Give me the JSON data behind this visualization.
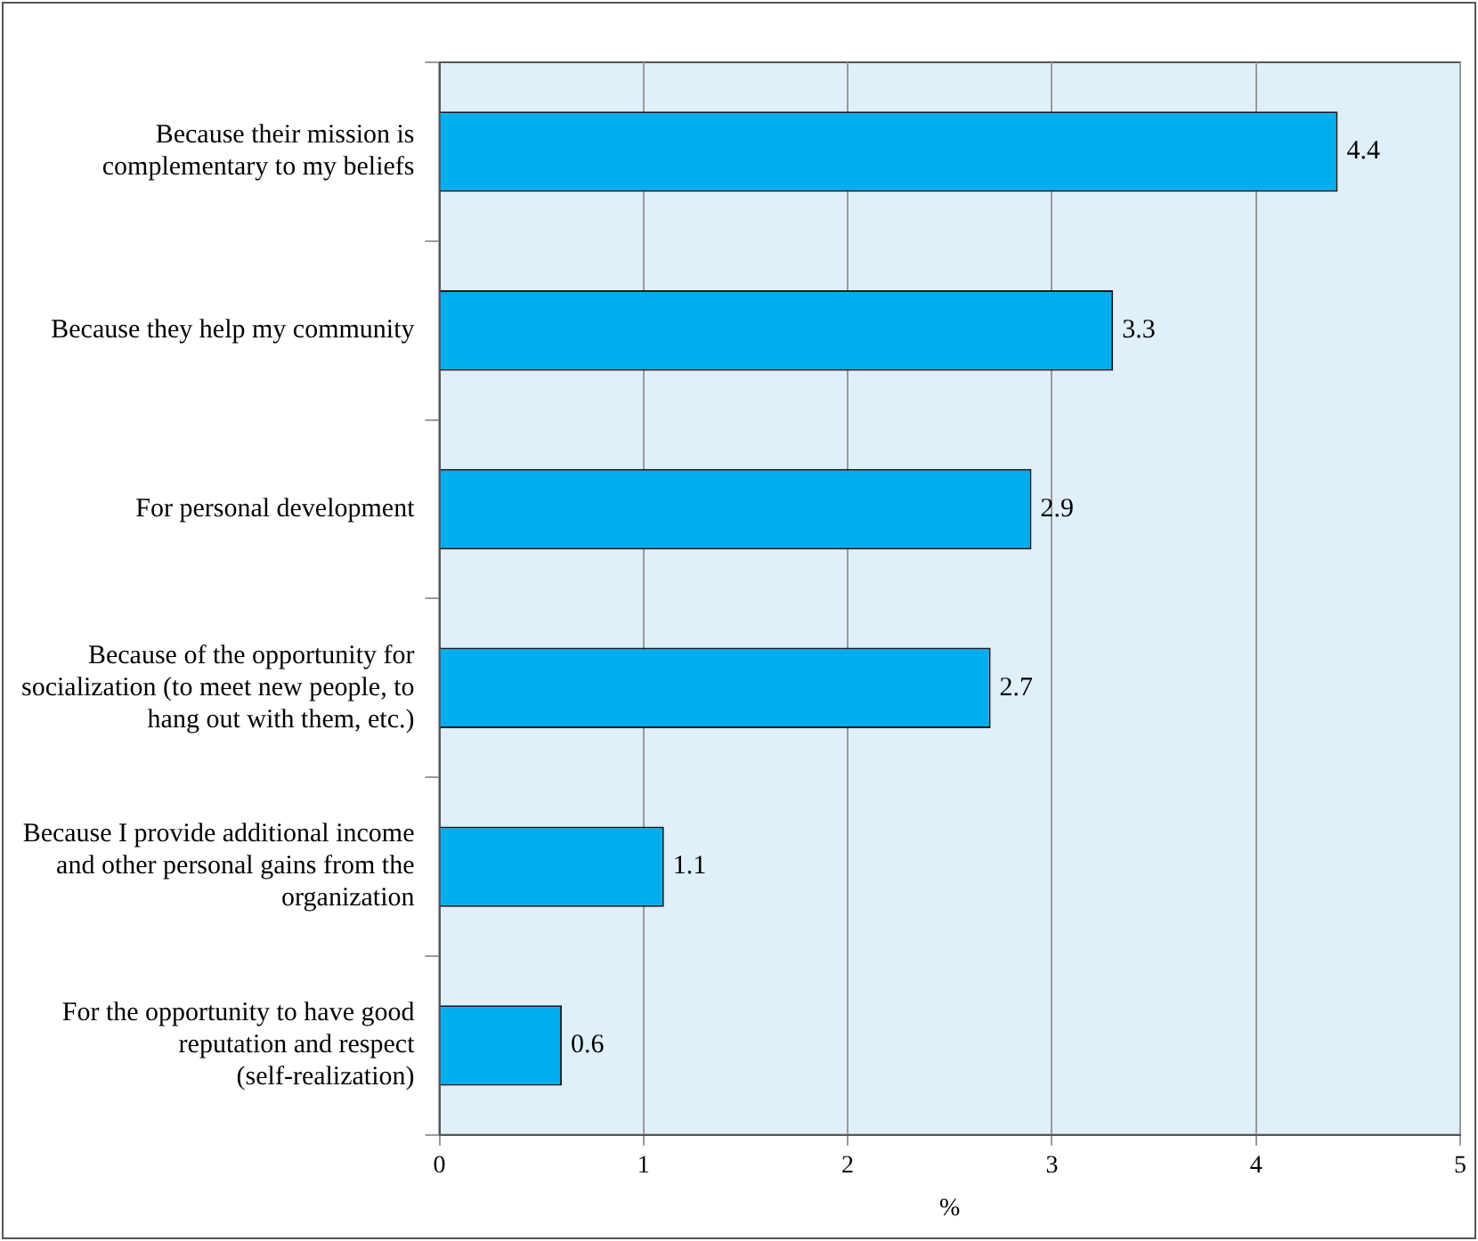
{
  "chart_data": {
    "type": "bar",
    "orientation": "horizontal",
    "categories": [
      "Because their mission is complementary to my beliefs",
      "Because they help my community",
      "For personal development",
      "Because of the opportunity for socialization (to meet new people, to hang out with them, etc.)",
      "Because I provide additional income and other personal gains from the organization",
      "For the opportunity to have good reputation and respect (self-realization)"
    ],
    "values": [
      4.4,
      3.3,
      2.9,
      2.7,
      1.1,
      0.6
    ],
    "color": "#00aeef",
    "xlabel": "%",
    "xlim": [
      0,
      5
    ],
    "xticks": [
      0,
      1,
      2,
      3,
      4,
      5
    ],
    "grid": "x",
    "data_labels": true
  }
}
